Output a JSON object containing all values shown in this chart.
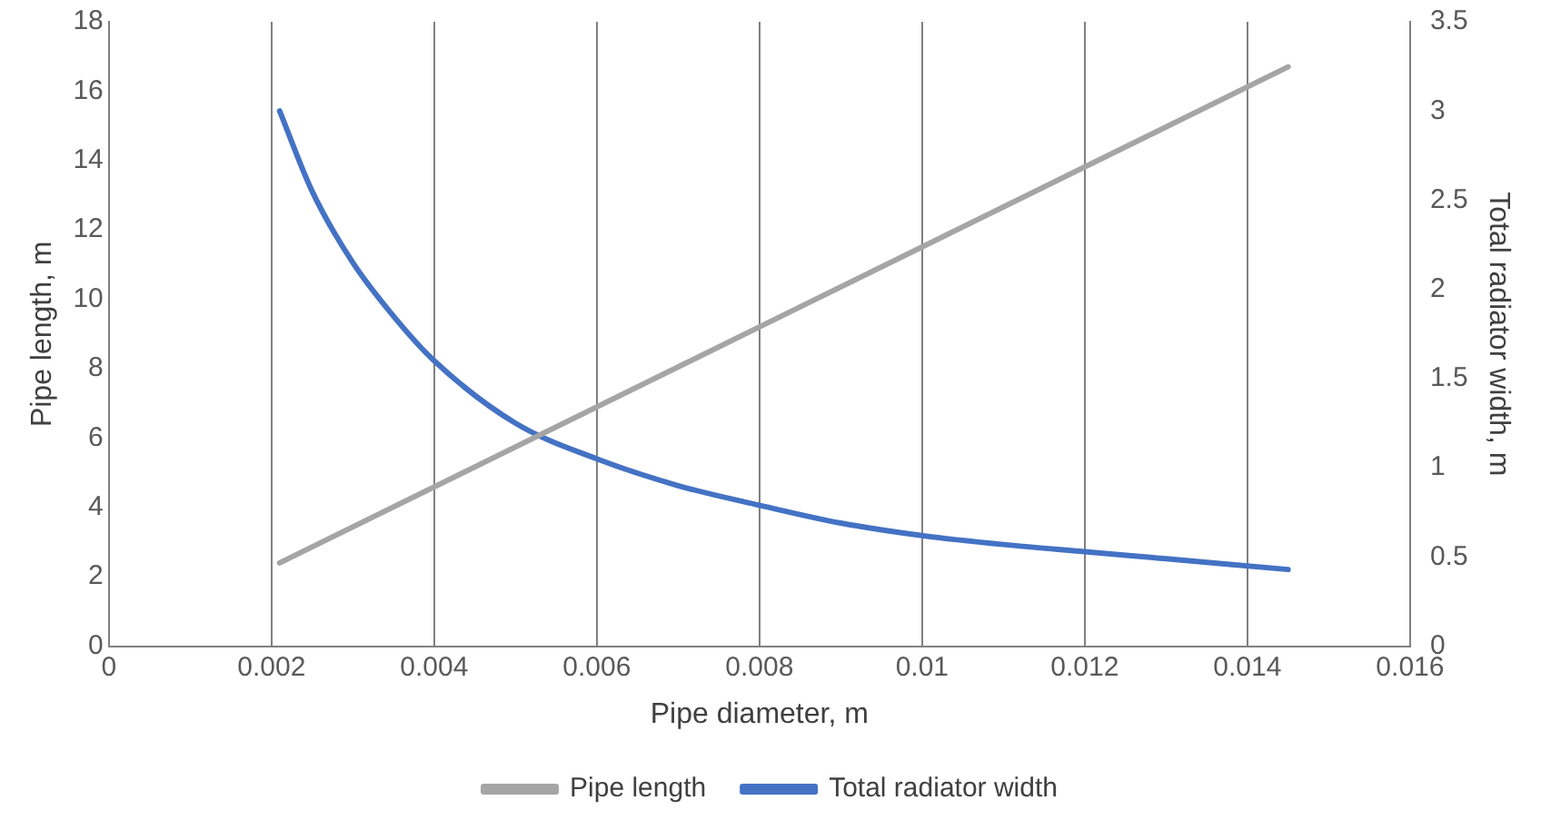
{
  "chart_data": {
    "type": "line",
    "xlabel": "Pipe diameter, m",
    "ylabel": "Pipe length, m",
    "y2label": "Total radiator width, m",
    "xlim": [
      0,
      0.016
    ],
    "xticks": [
      0,
      0.002,
      0.004,
      0.006,
      0.008,
      0.01,
      0.012,
      0.014,
      0.016
    ],
    "ylim": [
      0,
      18
    ],
    "yticks": [
      0,
      2,
      4,
      6,
      8,
      10,
      12,
      14,
      16,
      18
    ],
    "y2lim": [
      0,
      3.5
    ],
    "y2ticks": [
      0,
      0.5,
      1,
      1.5,
      2,
      2.5,
      3,
      3.5
    ],
    "grid": "x",
    "legend": "bottom",
    "marker": "none",
    "line_style": "solid",
    "series": [
      {
        "name": "Pipe length",
        "color": "#a5a5a5",
        "x": [
          0.0021,
          0.0145
        ],
        "values": [
          2.4,
          16.7
        ]
      },
      {
        "name": "Total radiator width",
        "color": "#4472c4",
        "axis": "y2",
        "x": [
          0.0021,
          0.0025,
          0.003,
          0.0035,
          0.004,
          0.005,
          0.006,
          0.007,
          0.008,
          0.009,
          0.01,
          0.011,
          0.012,
          0.013,
          0.0145
        ],
        "values": [
          3.0,
          2.55,
          2.15,
          1.85,
          1.6,
          1.25,
          1.05,
          0.9,
          0.79,
          0.69,
          0.62,
          0.57,
          0.53,
          0.49,
          0.43
        ]
      }
    ]
  }
}
